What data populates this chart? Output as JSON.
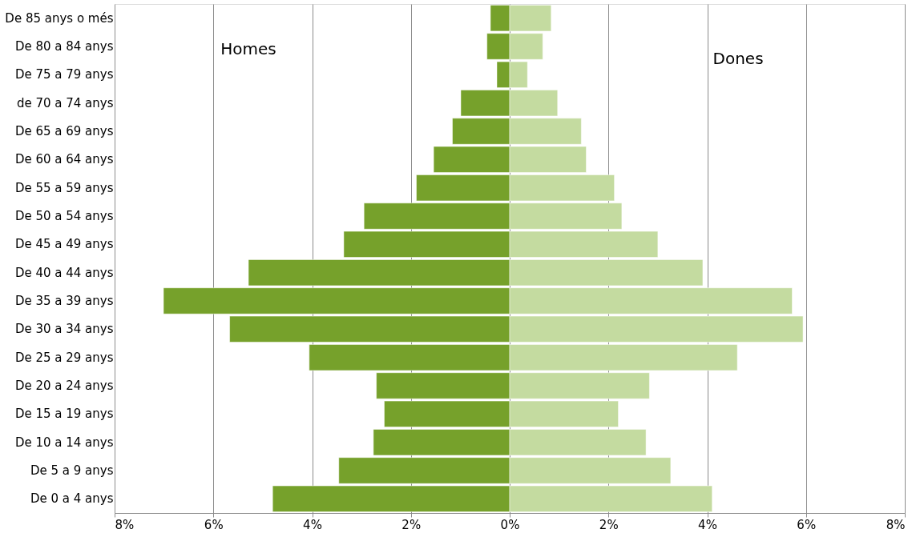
{
  "chart_data": {
    "type": "bar",
    "orientation": "horizontal",
    "stacked": true,
    "annotations": [
      "Homes",
      "Dones"
    ],
    "categories": [
      "De 85 anys o més",
      "De 80 a 84 anys",
      "De 75 a 79 anys",
      "de 70 a 74 anys",
      "De 65 a 69 anys",
      "De 60 a 64 anys",
      "De 55 a 59 anys",
      "De 50 a 54 anys",
      "De 45 a 49 anys",
      "De 40 a 44 anys",
      "De 35 a 39 anys",
      "De 30 a 34 anys",
      "De 25 a 29 anys",
      "De 20 a 24 anys",
      "De 15 a 19 anys",
      "De 10 a 14 anys",
      "De 5 a 9 anys",
      "De 0 a 4 anys"
    ],
    "series": [
      {
        "color": "#76a12b",
        "values": [
          -0.39,
          -0.46,
          -0.26,
          -0.99,
          -1.16,
          -1.54,
          -1.89,
          -2.95,
          -3.36,
          -5.29,
          -7.01,
          -5.67,
          -4.06,
          -2.7,
          -2.54,
          -2.76,
          -3.46,
          -4.8
        ]
      },
      {
        "color": "#c4dba0",
        "values": [
          0.84,
          0.67,
          0.36,
          0.97,
          1.45,
          1.55,
          2.12,
          2.27,
          3.0,
          3.91,
          5.72,
          5.94,
          4.61,
          2.83,
          2.2,
          2.76,
          3.26,
          4.1
        ]
      }
    ],
    "xlim": [
      -8,
      8
    ],
    "xticks": [
      {
        "value": -8,
        "label": "8%"
      },
      {
        "value": -6,
        "label": "6%"
      },
      {
        "value": -4,
        "label": "4%"
      },
      {
        "value": -2,
        "label": "2%"
      },
      {
        "value": 0,
        "label": "0%"
      },
      {
        "value": 2,
        "label": "2%"
      },
      {
        "value": 4,
        "label": "4%"
      },
      {
        "value": 6,
        "label": "6%"
      },
      {
        "value": 8,
        "label": "8%"
      }
    ],
    "grid": "x",
    "legend": false
  }
}
